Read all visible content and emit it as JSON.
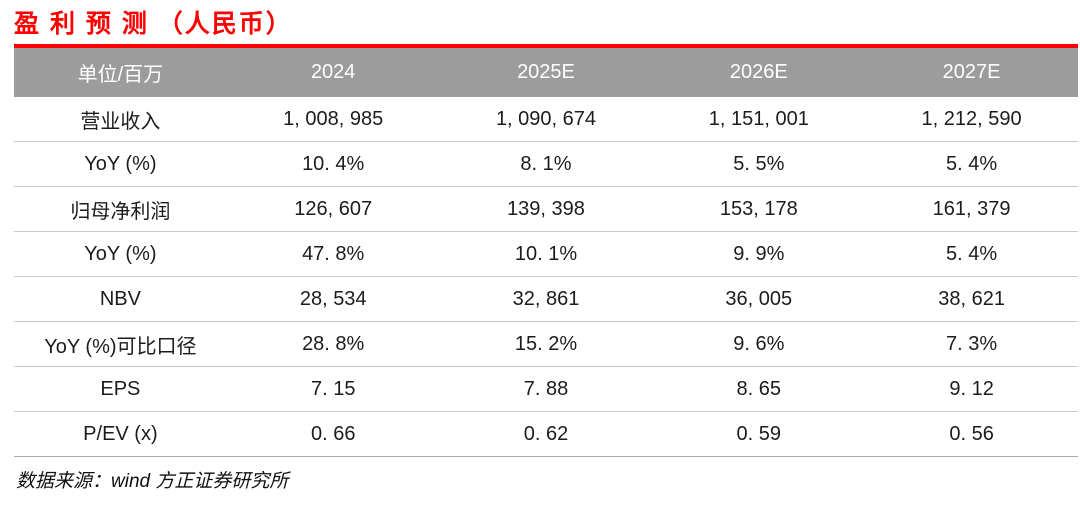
{
  "page": {
    "title": "盈 利 预 测 （人民币）"
  },
  "colors": {
    "accent_red": "#fe0000",
    "header_bg": "#9c9c9c",
    "header_text": "#ffffff",
    "row_divider": "#c9c9c9",
    "body_text": "#1c1c1c"
  },
  "table": {
    "columns": [
      "单位/百万",
      "2024",
      "2025E",
      "2026E",
      "2027E"
    ],
    "rows": [
      {
        "label": "营业收入",
        "values": [
          "1, 008, 985",
          "1, 090, 674",
          "1, 151, 001",
          "1, 212, 590"
        ]
      },
      {
        "label": "YoY (%)",
        "values": [
          "10. 4%",
          "8. 1%",
          "5. 5%",
          "5. 4%"
        ]
      },
      {
        "label": "归母净利润",
        "values": [
          "126, 607",
          "139, 398",
          "153, 178",
          "161, 379"
        ]
      },
      {
        "label": "YoY (%)",
        "values": [
          "47. 8%",
          "10. 1%",
          "9. 9%",
          "5. 4%"
        ]
      },
      {
        "label": "NBV",
        "values": [
          "28, 534",
          "32, 861",
          "36, 005",
          "38, 621"
        ]
      },
      {
        "label": "YoY (%)可比口径",
        "values": [
          "28. 8%",
          "15. 2%",
          "9. 6%",
          "7. 3%"
        ]
      },
      {
        "label": "EPS",
        "values": [
          "7. 15",
          "7. 88",
          "8. 65",
          "9. 12"
        ]
      },
      {
        "label": "P/EV (x)",
        "values": [
          "0. 66",
          "0. 62",
          "0. 59",
          "0. 56"
        ]
      }
    ]
  },
  "footer": {
    "source": "数据来源：wind 方正证券研究所"
  }
}
